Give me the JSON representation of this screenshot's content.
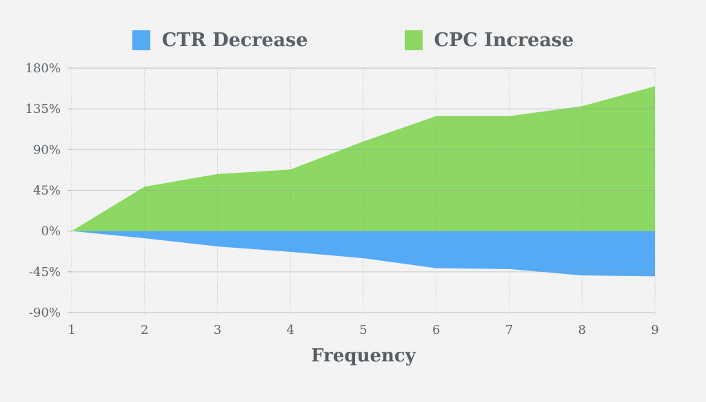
{
  "page": {
    "background_color": "#f2f3f2",
    "text_color": "#5d646b"
  },
  "legend": {
    "position": "top",
    "items": [
      {
        "label": "CTR Decrease",
        "color": "#55aaf5"
      },
      {
        "label": "CPC Increase",
        "color": "#8cd863"
      }
    ]
  },
  "x_axis": {
    "title": "Frequency",
    "tick_labels": [
      "1",
      "2",
      "3",
      "4",
      "5",
      "6",
      "7",
      "8",
      "9"
    ]
  },
  "y_axis": {
    "tick_labels": [
      "180%",
      "135%",
      "90%",
      "45%",
      "0%",
      "-45%",
      "-90%"
    ],
    "tick_values": [
      180,
      135,
      90,
      45,
      0,
      -45,
      -90
    ]
  },
  "chart_data": {
    "type": "area",
    "title": "",
    "x": [
      1,
      2,
      3,
      4,
      5,
      6,
      7,
      8,
      9
    ],
    "series": [
      {
        "name": "CTR Decrease",
        "color": "#55aaf5",
        "values": [
          0,
          -8,
          -17,
          -23,
          -30,
          -41,
          -42,
          -49,
          -50
        ]
      },
      {
        "name": "CPC Increase",
        "color": "#8cd863",
        "values": [
          0,
          49,
          63,
          68,
          99,
          127,
          127,
          138,
          160
        ]
      }
    ],
    "xlabel": "Frequency",
    "ylabel": "",
    "ylim": [
      -90,
      180
    ],
    "y_tick_step": 45,
    "baseline": 0,
    "grid": true,
    "legend_position": "top"
  },
  "colors": {
    "grid_h": "rgba(150,155,163,0.45)",
    "grid_v": "rgba(140,145,153,0.55)",
    "axis_line": "#c4c7ce",
    "tick_stub": "#b2b6bc"
  }
}
